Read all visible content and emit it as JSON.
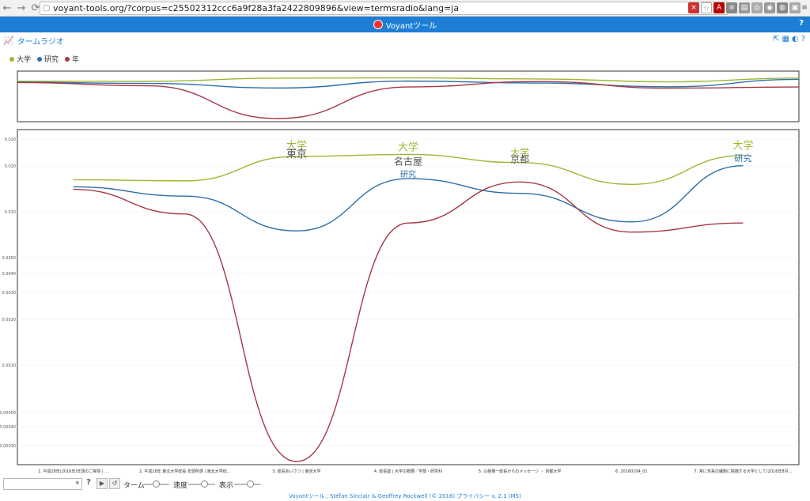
{
  "browser": {
    "url": "voyant-tools.org/?corpus=c25502312ccc6a9f28a3fa2422809896&view=termsradio&lang=ja"
  },
  "app": {
    "title": "Voyantツール",
    "help": "?"
  },
  "tool": {
    "title": "タームラジオ"
  },
  "legend": [
    {
      "label": "大学",
      "color": "#9ab833"
    },
    {
      "label": "研究",
      "color": "#2f6fa8"
    },
    {
      "label": "年",
      "color": "#a63846"
    }
  ],
  "chart_data": {
    "type": "line",
    "x": [
      0,
      1,
      2,
      3,
      4,
      5,
      6
    ],
    "series": [
      {
        "name": "大学",
        "values": [
          0.012,
          0.0118,
          0.017,
          0.0175,
          0.0155,
          0.0112,
          0.0172
        ]
      },
      {
        "name": "研究",
        "values": [
          0.0108,
          0.0094,
          0.0056,
          0.0122,
          0.0098,
          0.0064,
          0.0148
        ]
      },
      {
        "name": "年",
        "values": [
          0.0104,
          0.0072,
          0.00018,
          0.0063,
          0.0116,
          0.0055,
          0.0063
        ]
      }
    ],
    "yticks": [
      "0.020",
      "0.020",
      "0.010",
      "0.0050",
      "0.0040",
      "0.0030",
      "0.0020",
      "0.0010",
      "0.00050",
      "0.00040",
      "0.00030"
    ],
    "categories": [
      "1. 平成28年(2016年)年頭のご挨拶 | ...",
      "2. 平成28年 東北大学総長 年頭所感 | 東北大学総...",
      "3. 総長あいさつ | 東京大学",
      "4. 総長室 | 大学の概要／学部・研究科",
      "5. 山極壽一総長からのメッセージ ・ 京都大学",
      "6. 20160104_01",
      "7. 常に未来の課題に挑戦する大学として(2016年8月..."
    ],
    "term_labels": [
      {
        "text": "大学",
        "size": 13,
        "color": "#9ab833",
        "col": 2,
        "v": 0.019
      },
      {
        "text": "東京",
        "size": 13,
        "color": "#555",
        "col": 2,
        "v": 0.0168
      },
      {
        "text": "大学",
        "size": 13,
        "color": "#9ab833",
        "col": 3,
        "v": 0.0186
      },
      {
        "text": "名古屋",
        "size": 12,
        "color": "#555",
        "col": 3,
        "v": 0.015
      },
      {
        "text": "研究",
        "size": 10,
        "color": "#2f6fa8",
        "col": 3,
        "v": 0.0125
      },
      {
        "text": "大学",
        "size": 12,
        "color": "#9ab833",
        "col": 4,
        "v": 0.0172
      },
      {
        "text": "京都",
        "size": 12,
        "color": "#555",
        "col": 4,
        "v": 0.0155
      },
      {
        "text": "大学",
        "size": 13,
        "color": "#9ab833",
        "col": 6,
        "v": 0.019
      },
      {
        "text": "研究",
        "size": 11,
        "color": "#2f6fa8",
        "col": 6,
        "v": 0.0158
      }
    ],
    "grid": true
  },
  "controls": {
    "term_label": "ターム",
    "speed_label": "速度",
    "display_label": "表示"
  },
  "footer": {
    "text": "Voyantツール , Stéfan Sinclair & Geoffrey Rockwell (© 2016) プライバシー v. 2.1 (M5)"
  }
}
